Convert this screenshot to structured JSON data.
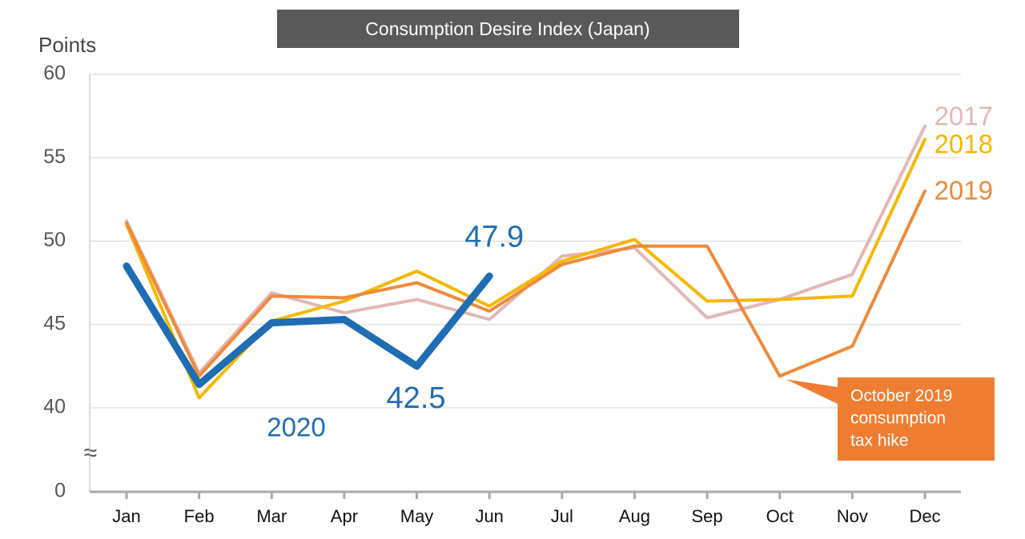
{
  "chart_data": {
    "type": "line",
    "title": "Consumption Desire Index (Japan)",
    "y_label": "Points",
    "categories": [
      "Jan",
      "Feb",
      "Mar",
      "Apr",
      "May",
      "Jun",
      "Jul",
      "Aug",
      "Sep",
      "Oct",
      "Nov",
      "Dec"
    ],
    "ylim": [
      0,
      60
    ],
    "axis_break": [
      0,
      40
    ],
    "axis_break_label": "≈",
    "yticks": [
      0,
      40,
      45,
      50,
      55,
      60
    ],
    "grid": true,
    "series": [
      {
        "name": "2017",
        "color": "#e3b7b5",
        "values": [
          51.2,
          42.1,
          46.9,
          45.7,
          46.5,
          45.3,
          49.1,
          49.6,
          45.4,
          46.5,
          48.0,
          56.9
        ]
      },
      {
        "name": "2018",
        "color": "#f5b800",
        "values": [
          51.0,
          40.6,
          45.2,
          46.4,
          48.2,
          46.1,
          48.8,
          50.1,
          46.4,
          46.5,
          46.7,
          56.1
        ]
      },
      {
        "name": "2019",
        "color": "#ef8a3a",
        "values": [
          51.1,
          41.9,
          46.7,
          46.6,
          47.5,
          45.8,
          48.6,
          49.7,
          49.7,
          41.9,
          43.7,
          53.0
        ]
      },
      {
        "name": "2020",
        "color": "#1f6db3",
        "values": [
          48.5,
          41.4,
          45.1,
          45.3,
          42.5,
          47.9,
          null,
          null,
          null,
          null,
          null,
          null
        ],
        "value_labels": [
          null,
          null,
          null,
          null,
          "42.5",
          "47.9",
          null,
          null,
          null,
          null,
          null,
          null
        ]
      }
    ],
    "annotation": {
      "lines": [
        "October 2019",
        "consumption",
        "tax hike"
      ],
      "color": "#ef7d31"
    }
  }
}
